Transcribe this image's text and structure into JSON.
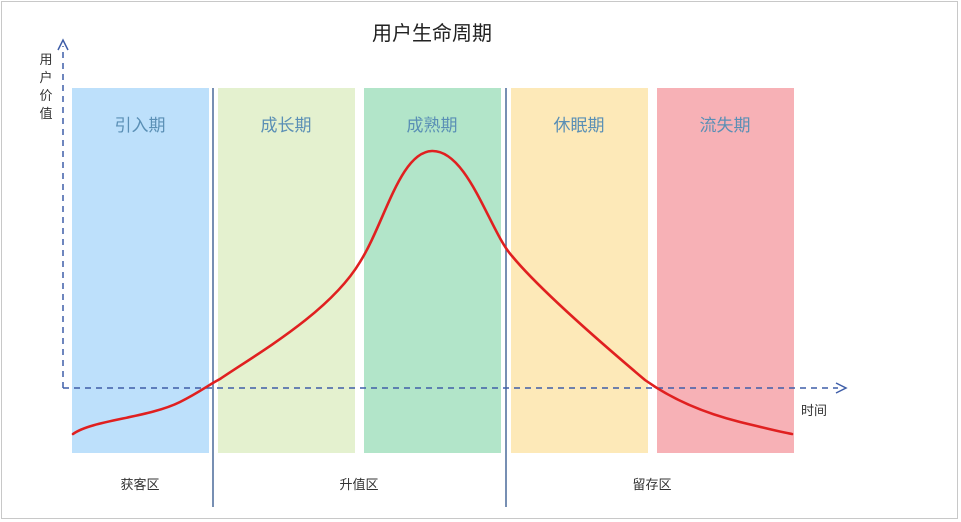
{
  "title": "用户生命周期",
  "y_axis_label": [
    "用",
    "户",
    "价",
    "值"
  ],
  "x_axis_label": "时间",
  "stages": [
    {
      "label": "引入期",
      "color": "#bde0fb",
      "label_color": "#5a8fb5"
    },
    {
      "label": "成长期",
      "color": "#e4f1cf",
      "label_color": "#5a8fb5"
    },
    {
      "label": "成熟期",
      "color": "#b2e5c9",
      "label_color": "#5a8fb5"
    },
    {
      "label": "休眠期",
      "color": "#fde9b8",
      "label_color": "#5a8fb5"
    },
    {
      "label": "流失期",
      "color": "#f7b1b6",
      "label_color": "#5a8fb5"
    }
  ],
  "zones": [
    {
      "label": "获客区"
    },
    {
      "label": "升值区"
    },
    {
      "label": "留存区"
    }
  ],
  "colors": {
    "curve": "#e02020",
    "axis": "#3f5ea8",
    "divider": "#4a6a9a",
    "title": "#222222",
    "small_text": "#333333"
  }
}
